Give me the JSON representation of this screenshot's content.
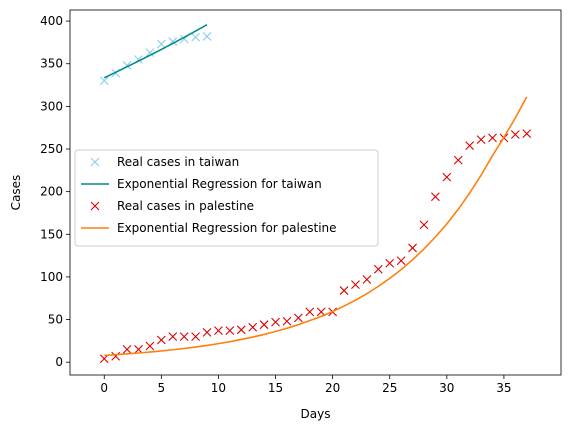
{
  "chart_data": {
    "type": "scatter",
    "title": "",
    "xlabel": "Days",
    "ylabel": "Cases",
    "xlim": [
      -3.0,
      40.0
    ],
    "ylim": [
      -15,
      413
    ],
    "xticks": [
      0,
      5,
      10,
      15,
      20,
      25,
      30,
      35
    ],
    "yticks": [
      0,
      50,
      100,
      150,
      200,
      250,
      300,
      350,
      400
    ],
    "grid": false,
    "legend_position": "center-left",
    "series": [
      {
        "name": "Real cases in taiwan",
        "kind": "markers",
        "marker": "x",
        "color": "#87ceeb",
        "x": [
          0,
          1,
          2,
          3,
          4,
          5,
          6,
          7,
          8,
          9
        ],
        "y": [
          330,
          339,
          348,
          355,
          363,
          373,
          376,
          379,
          381,
          382
        ]
      },
      {
        "name": "Exponential Regression for taiwan",
        "kind": "line",
        "color": "#008b8b",
        "x": [
          0,
          1,
          2,
          3,
          4,
          5,
          6,
          7,
          8,
          9
        ],
        "y": [
          333.5,
          339.9,
          346.5,
          353.1,
          359.9,
          366.8,
          373.8,
          381.0,
          388.3,
          395.8
        ]
      },
      {
        "name": "Real cases in palestine",
        "kind": "markers",
        "marker": "x",
        "color": "#dd0000",
        "x": [
          0,
          1,
          2,
          3,
          4,
          5,
          6,
          7,
          8,
          9,
          10,
          11,
          12,
          13,
          14,
          15,
          16,
          17,
          18,
          19,
          20,
          21,
          22,
          23,
          24,
          25,
          26,
          27,
          28,
          29,
          30,
          31,
          32,
          33,
          34,
          35,
          36,
          37
        ],
        "y": [
          4,
          7,
          15,
          15,
          19,
          26,
          30,
          30,
          30,
          35,
          37,
          37,
          38,
          41,
          44,
          47,
          48,
          52,
          59,
          59,
          59,
          84,
          91,
          97,
          109,
          116,
          119,
          134,
          161,
          194,
          217,
          237,
          254,
          261,
          263,
          263,
          267,
          268
        ]
      },
      {
        "name": "Exponential Regression for palestine",
        "kind": "line",
        "color": "#ff7f0e",
        "x": [
          0,
          1,
          2,
          3,
          4,
          5,
          6,
          7,
          8,
          9,
          10,
          11,
          12,
          13,
          14,
          15,
          16,
          17,
          18,
          19,
          20,
          21,
          22,
          23,
          24,
          25,
          26,
          27,
          28,
          29,
          30,
          31,
          32,
          33,
          34,
          35,
          36,
          37
        ],
        "y": [
          8.0,
          8.8,
          9.8,
          10.8,
          11.9,
          13.2,
          14.6,
          16.1,
          17.8,
          19.7,
          21.8,
          24.1,
          26.7,
          29.5,
          32.6,
          36.0,
          39.8,
          44.0,
          48.7,
          53.8,
          59.5,
          65.8,
          72.7,
          80.4,
          88.9,
          98.3,
          108.6,
          120.1,
          132.8,
          146.8,
          162.2,
          179.3,
          198.3,
          219.2,
          242.3,
          263.5,
          286.5,
          311.2
        ]
      }
    ]
  }
}
